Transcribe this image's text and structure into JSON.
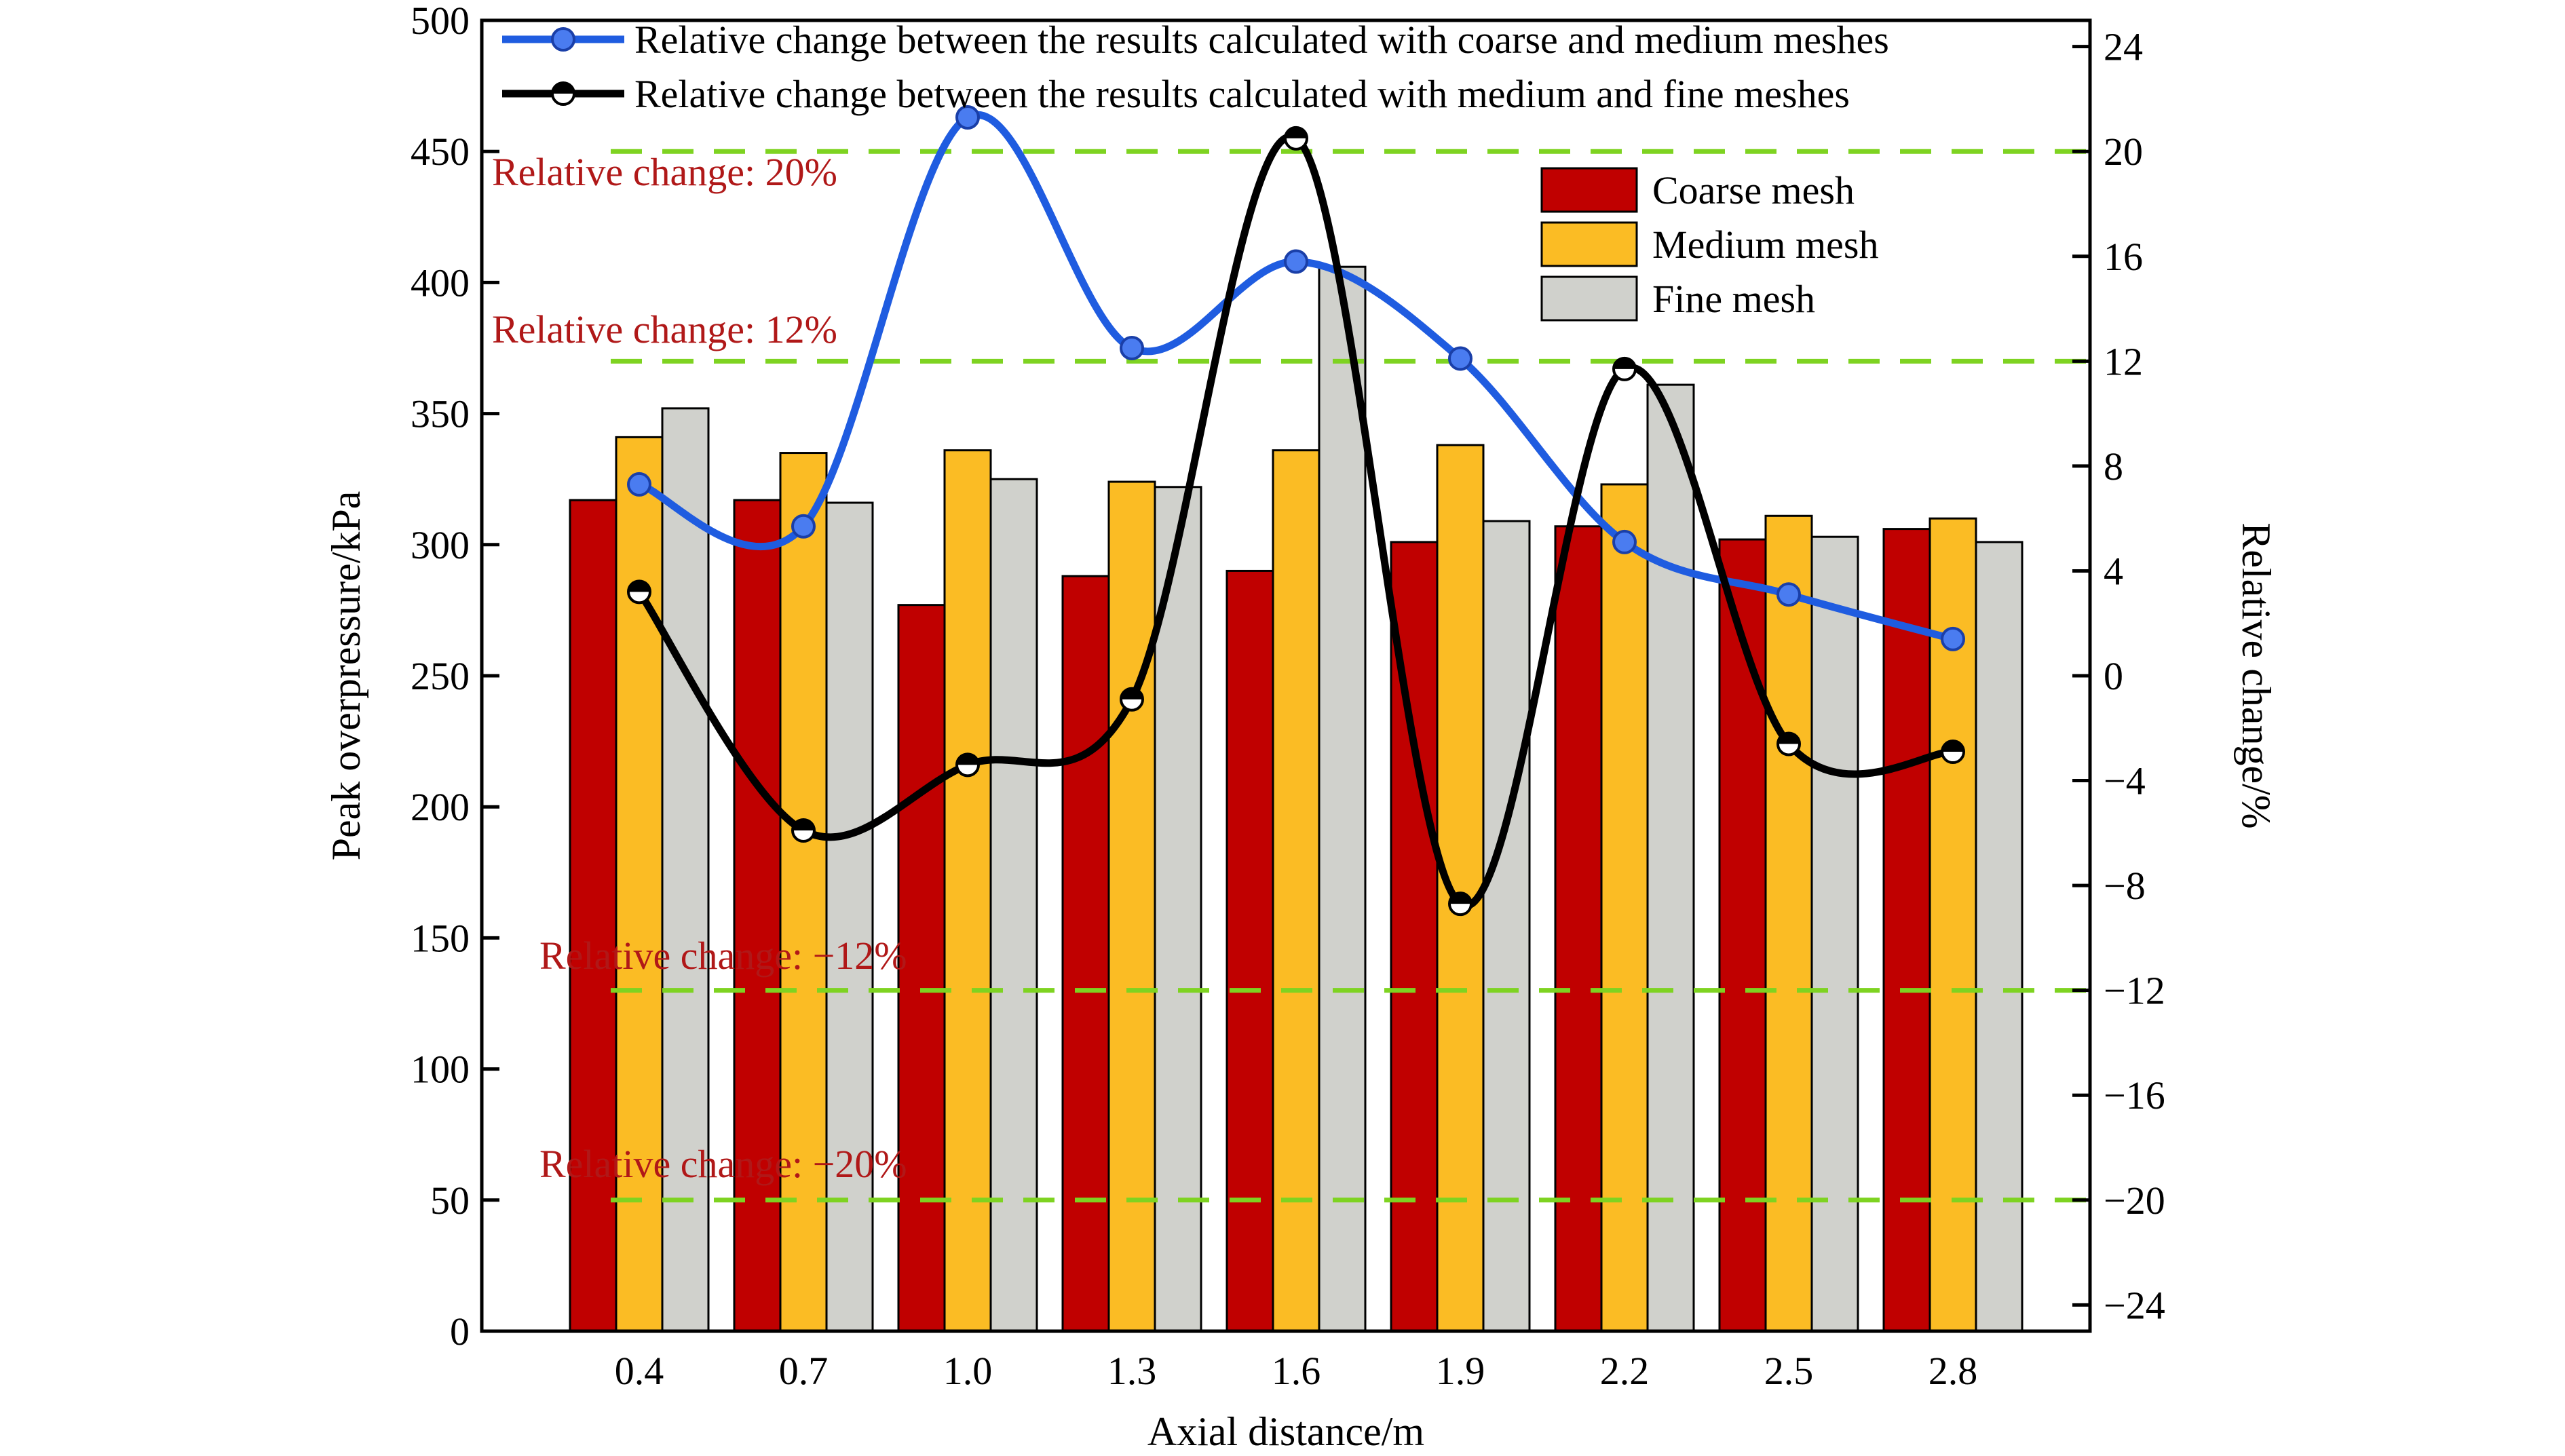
{
  "chart_data": {
    "type": "bar",
    "x_title": "Axial distance/m",
    "y_left_title": "Peak overpressure/kPa",
    "y_right_title": "Relative change/%",
    "categories": [
      "0.4",
      "0.7",
      "1.0",
      "1.3",
      "1.6",
      "1.9",
      "2.2",
      "2.5",
      "2.8"
    ],
    "y_left": {
      "min": 0,
      "max": 500,
      "ticks": [
        0,
        50,
        100,
        150,
        200,
        250,
        300,
        350,
        400,
        450,
        500
      ]
    },
    "y_right": {
      "min": -25,
      "max": 25,
      "ticks": [
        -24,
        -20,
        -16,
        -12,
        -8,
        -4,
        0,
        4,
        8,
        12,
        16,
        20,
        24
      ],
      "tick_labels": [
        "−24",
        "−20",
        "−16",
        "−12",
        "−8",
        "−4",
        "0",
        "4",
        "8",
        "12",
        "16",
        "20",
        "24"
      ]
    },
    "bar_series": [
      {
        "name": "Coarse mesh",
        "color": "#c00000",
        "values": [
          317,
          317,
          277,
          288,
          290,
          301,
          307,
          302,
          306
        ]
      },
      {
        "name": "Medium mesh",
        "color": "#fbbc24",
        "values": [
          341,
          335,
          336,
          324,
          336,
          338,
          323,
          311,
          310
        ]
      },
      {
        "name": "Fine mesh",
        "color": "#d0d1cc",
        "values": [
          352,
          316,
          325,
          322,
          406,
          309,
          361,
          303,
          301
        ]
      }
    ],
    "line_series": [
      {
        "name": "Relative change between the results calculated with coarse and medium meshes",
        "color": "#1f5ce0",
        "marker": "blue-dot",
        "values": [
          7.3,
          5.7,
          21.3,
          12.5,
          15.8,
          12.1,
          5.1,
          3.1,
          1.4
        ]
      },
      {
        "name": "Relative change between the results calculated with medium and fine meshes",
        "color": "#000000",
        "marker": "half-filled-circle",
        "values": [
          3.2,
          -5.9,
          -3.4,
          -0.9,
          20.5,
          -8.7,
          11.7,
          -2.6,
          -2.9
        ]
      }
    ],
    "reference_lines": [
      {
        "value": 20,
        "label": "Relative change: 20%"
      },
      {
        "value": 12,
        "label": "Relative change: 12%"
      },
      {
        "value": -12,
        "label": "Relative change: −12%"
      },
      {
        "value": -20,
        "label": "Relative change: −20%"
      }
    ],
    "reference_color": "#7ed321",
    "grid": false,
    "legend_lines_position": "top",
    "legend_bars_position": "upper-right"
  }
}
